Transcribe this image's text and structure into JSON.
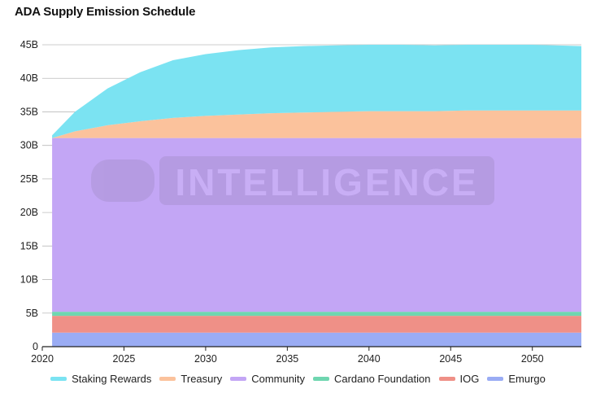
{
  "chart_data": {
    "type": "area",
    "title": "ADA Supply Emission Schedule",
    "xlabel": "",
    "ylabel": "",
    "x_ticks": [
      "2020",
      "2025",
      "2030",
      "2035",
      "2040",
      "2045",
      "2050"
    ],
    "y_ticks": [
      "0",
      "5B",
      "10B",
      "15B",
      "20B",
      "25B",
      "30B",
      "35B",
      "40B",
      "45B"
    ],
    "xlim": [
      2020,
      2053
    ],
    "ylim": [
      0,
      45
    ],
    "stacked": true,
    "grid": true,
    "legend_position": "bottom",
    "watermark": "INTELLIGENCE",
    "x": [
      2020.6,
      2022,
      2024,
      2026,
      2028,
      2030,
      2032,
      2034,
      2036,
      2038,
      2040,
      2042,
      2044,
      2046,
      2048,
      2050,
      2053
    ],
    "series": [
      {
        "name": "Emurgo",
        "color": "#9aacf4",
        "values": [
          2.1,
          2.1,
          2.1,
          2.1,
          2.1,
          2.1,
          2.1,
          2.1,
          2.1,
          2.1,
          2.1,
          2.1,
          2.1,
          2.1,
          2.1,
          2.1,
          2.1
        ]
      },
      {
        "name": "IOG",
        "color": "#ef9087",
        "values": [
          2.5,
          2.5,
          2.5,
          2.5,
          2.5,
          2.5,
          2.5,
          2.5,
          2.5,
          2.5,
          2.5,
          2.5,
          2.5,
          2.5,
          2.5,
          2.5,
          2.5
        ]
      },
      {
        "name": "Cardano Foundation",
        "color": "#6fd6b0",
        "values": [
          0.6,
          0.6,
          0.6,
          0.6,
          0.6,
          0.6,
          0.6,
          0.6,
          0.6,
          0.6,
          0.6,
          0.6,
          0.6,
          0.6,
          0.6,
          0.6,
          0.6
        ]
      },
      {
        "name": "Community",
        "color": "#c3a6f5",
        "values": [
          25.9,
          25.9,
          25.9,
          25.9,
          25.9,
          25.9,
          25.9,
          25.9,
          25.9,
          25.9,
          25.9,
          25.9,
          25.9,
          25.9,
          25.9,
          25.9,
          25.9
        ]
      },
      {
        "name": "Treasury",
        "color": "#fbc29c",
        "values": [
          0.0,
          1.0,
          1.9,
          2.5,
          3.0,
          3.3,
          3.5,
          3.7,
          3.8,
          3.9,
          4.0,
          4.0,
          4.0,
          4.1,
          4.1,
          4.1,
          4.1
        ]
      },
      {
        "name": "Staking Rewards",
        "color": "#7be3f2",
        "values": [
          0.4,
          2.9,
          5.5,
          7.3,
          8.6,
          9.2,
          9.6,
          9.8,
          9.9,
          9.9,
          9.9,
          9.9,
          9.8,
          9.8,
          9.8,
          9.8,
          9.6
        ]
      }
    ]
  }
}
